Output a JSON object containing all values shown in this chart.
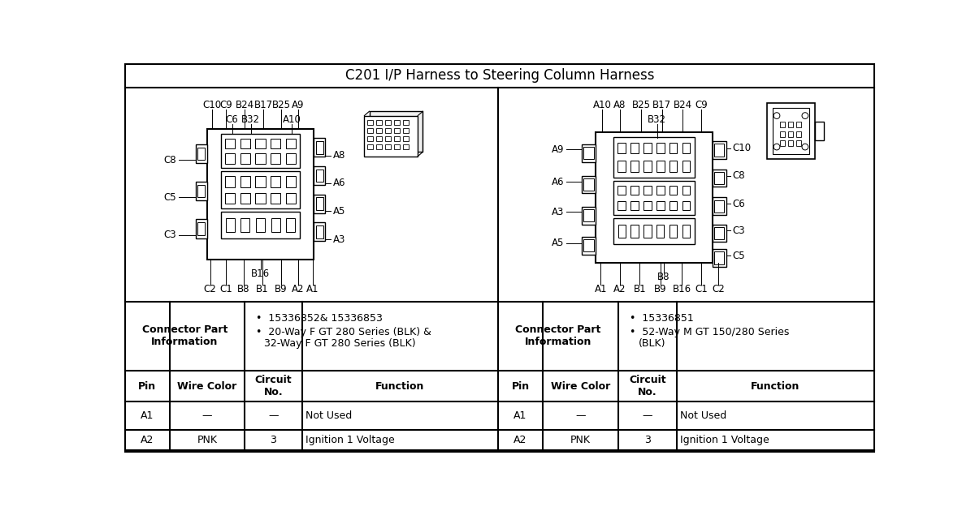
{
  "title": "C201 I/P Harness to Steering Column Harness",
  "title_fontsize": 12,
  "bg_color": "#ffffff",
  "border_color": "#000000",
  "left_connector_info_label": "Connector Part\nInformation",
  "left_connector_info_bullets": [
    "15336852& 15336853",
    "20-Way F GT 280 Series (BLK) &\n32-Way F GT 280 Series (BLK)"
  ],
  "right_connector_info_label": "Connector Part\nInformation",
  "right_connector_info_bullets": [
    "15336851",
    "52-Way M GT 150/280 Series\n(BLK)"
  ],
  "table_headers_left": [
    "Pin",
    "Wire Color",
    "Circuit\nNo.",
    "Function"
  ],
  "table_headers_right": [
    "Pin",
    "Wire Color",
    "Circuit\nNo.",
    "Function"
  ],
  "table_rows_left": [
    [
      "A1",
      "—",
      "—",
      "Not Used"
    ],
    [
      "A2",
      "PNK",
      "3",
      "Ignition 1 Voltage"
    ]
  ],
  "table_rows_right": [
    [
      "A1",
      "—",
      "—",
      "Not Used"
    ],
    [
      "A2",
      "PNK",
      "3",
      "Ignition 1 Voltage"
    ]
  ],
  "left_top_labels": [
    "C10",
    "C9",
    "B24",
    "B17",
    "B25",
    "A9"
  ],
  "left_inner_labels": [
    "C6",
    "B32",
    "A10"
  ],
  "left_left_labels": [
    "C8",
    "C5",
    "C3"
  ],
  "left_right_labels": [
    "A8",
    "A6",
    "A5",
    "A3"
  ],
  "left_bottom_labels": [
    "C2",
    "C1",
    "B8",
    "B1",
    "B9",
    "A2",
    "A1"
  ],
  "left_mid_label": "B16",
  "right_top_labels": [
    "A10",
    "A8",
    "B25",
    "B17",
    "B24",
    "C9"
  ],
  "right_inner_label": "B32",
  "right_left_labels": [
    "A9",
    "A6",
    "A3",
    "A5"
  ],
  "right_right_labels": [
    "C10",
    "C8",
    "C6",
    "C3",
    "C5"
  ],
  "right_bottom_labels": [
    "A1",
    "A2",
    "B1",
    "B9",
    "B16",
    "C1",
    "C2"
  ],
  "right_mid_label": "B8",
  "font_family": "DejaVu Sans"
}
